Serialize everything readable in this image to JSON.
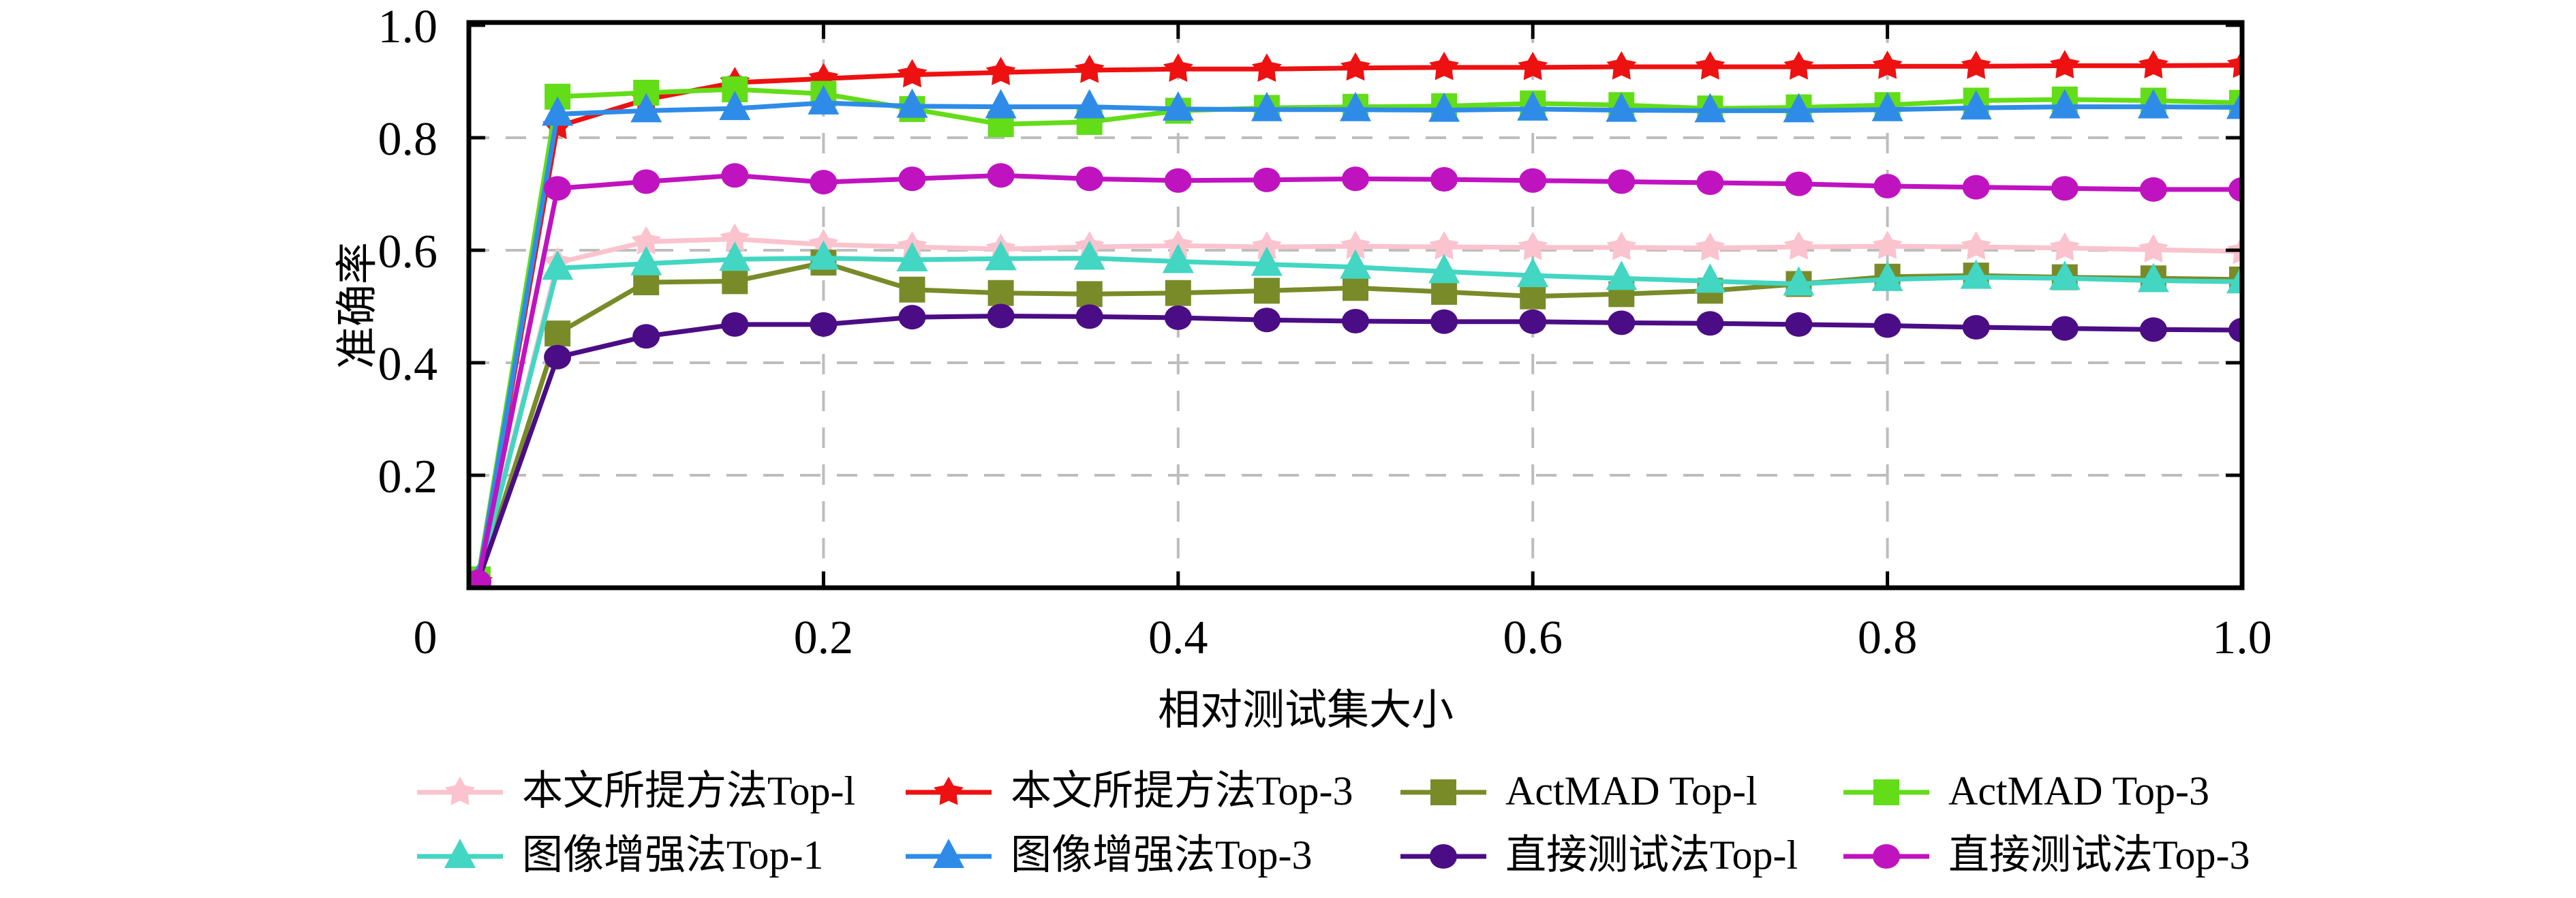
{
  "chart_data": {
    "type": "line",
    "title": "",
    "xlabel": "相对测试集大小",
    "ylabel": "准确率",
    "xlim": [
      0,
      1.0
    ],
    "ylim": [
      0,
      1.005
    ],
    "grid": {
      "style": "dashed",
      "color": "#bdbdbd",
      "x_values": [
        0.2,
        0.4,
        0.6,
        0.8
      ],
      "y_values": [
        0.2,
        0.4,
        0.6,
        0.8
      ]
    },
    "axis_color": "#000000",
    "background": "#ffffff",
    "xticks": [
      {
        "v": 0.0,
        "label": "0"
      },
      {
        "v": 0.2,
        "label": "0.2"
      },
      {
        "v": 0.4,
        "label": "0.4"
      },
      {
        "v": 0.6,
        "label": "0.6"
      },
      {
        "v": 0.8,
        "label": "0.8"
      },
      {
        "v": 1.0,
        "label": "1.0"
      }
    ],
    "yticks": [
      {
        "v": 0.2,
        "label": "0.2"
      },
      {
        "v": 0.4,
        "label": "0.4"
      },
      {
        "v": 0.6,
        "label": "0.6"
      },
      {
        "v": 0.8,
        "label": "0.8"
      },
      {
        "v": 1.0,
        "label": "1.0"
      }
    ],
    "x": [
      0.005,
      0.05,
      0.1,
      0.15,
      0.2,
      0.25,
      0.3,
      0.35,
      0.4,
      0.45,
      0.5,
      0.55,
      0.6,
      0.65,
      0.7,
      0.75,
      0.8,
      0.85,
      0.9,
      0.95,
      1.0
    ],
    "series": [
      {
        "key": "proposed-top1",
        "label": "本文所提方法Top-l",
        "color": "#FAC3CE",
        "marker": "star",
        "values": [
          0.01,
          0.578,
          0.615,
          0.62,
          0.61,
          0.606,
          0.602,
          0.606,
          0.608,
          0.606,
          0.607,
          0.606,
          0.605,
          0.605,
          0.604,
          0.606,
          0.607,
          0.606,
          0.604,
          0.601,
          0.598
        ]
      },
      {
        "key": "proposed-top3",
        "label": "本文所提方法Top-3",
        "color": "#EE1111",
        "marker": "star",
        "values": [
          0.01,
          0.82,
          0.868,
          0.898,
          0.905,
          0.912,
          0.916,
          0.92,
          0.922,
          0.922,
          0.924,
          0.925,
          0.925,
          0.926,
          0.926,
          0.926,
          0.927,
          0.927,
          0.928,
          0.928,
          0.929
        ]
      },
      {
        "key": "actmad-top1",
        "label": "ActMAD Top-l",
        "color": "#798B28",
        "marker": "square",
        "values": [
          0.01,
          0.452,
          0.543,
          0.545,
          0.578,
          0.53,
          0.524,
          0.522,
          0.524,
          0.528,
          0.533,
          0.526,
          0.518,
          0.522,
          0.528,
          0.54,
          0.553,
          0.555,
          0.552,
          0.55,
          0.548
        ]
      },
      {
        "key": "actmad-top3",
        "label": "ActMAD Top-3",
        "color": "#62DD17",
        "marker": "square",
        "values": [
          0.015,
          0.873,
          0.88,
          0.886,
          0.878,
          0.851,
          0.824,
          0.828,
          0.848,
          0.853,
          0.855,
          0.856,
          0.861,
          0.858,
          0.852,
          0.854,
          0.858,
          0.866,
          0.868,
          0.866,
          0.862
        ]
      },
      {
        "key": "image-aug-top1",
        "label": "图像增强法Top-1",
        "color": "#43D6C2",
        "marker": "triangle",
        "values": [
          0.01,
          0.568,
          0.576,
          0.584,
          0.586,
          0.583,
          0.585,
          0.586,
          0.58,
          0.575,
          0.57,
          0.562,
          0.555,
          0.55,
          0.545,
          0.54,
          0.548,
          0.552,
          0.55,
          0.546,
          0.544
        ]
      },
      {
        "key": "image-aug-top3",
        "label": "图像增强法Top-3",
        "color": "#2E8CE8",
        "marker": "triangle",
        "values": [
          0.01,
          0.842,
          0.848,
          0.852,
          0.862,
          0.856,
          0.855,
          0.855,
          0.851,
          0.85,
          0.85,
          0.849,
          0.851,
          0.849,
          0.848,
          0.848,
          0.85,
          0.853,
          0.855,
          0.855,
          0.854
        ]
      },
      {
        "key": "direct-test-top1",
        "label": "直接测试法Top-l",
        "color": "#4B0D85",
        "marker": "circle",
        "values": [
          0.01,
          0.41,
          0.447,
          0.468,
          0.468,
          0.481,
          0.483,
          0.482,
          0.48,
          0.476,
          0.474,
          0.473,
          0.473,
          0.471,
          0.47,
          0.468,
          0.466,
          0.463,
          0.461,
          0.459,
          0.458
        ]
      },
      {
        "key": "direct-test-top3",
        "label": "直接测试法Top-3",
        "color": "#C013C0",
        "marker": "circle",
        "values": [
          0.01,
          0.71,
          0.722,
          0.733,
          0.721,
          0.727,
          0.733,
          0.727,
          0.724,
          0.725,
          0.727,
          0.726,
          0.724,
          0.722,
          0.72,
          0.718,
          0.714,
          0.712,
          0.71,
          0.708,
          0.708
        ]
      }
    ],
    "legend": {
      "position": "below",
      "rows": [
        [
          0,
          1,
          2,
          3
        ],
        [
          4,
          5,
          6,
          7
        ]
      ]
    }
  }
}
